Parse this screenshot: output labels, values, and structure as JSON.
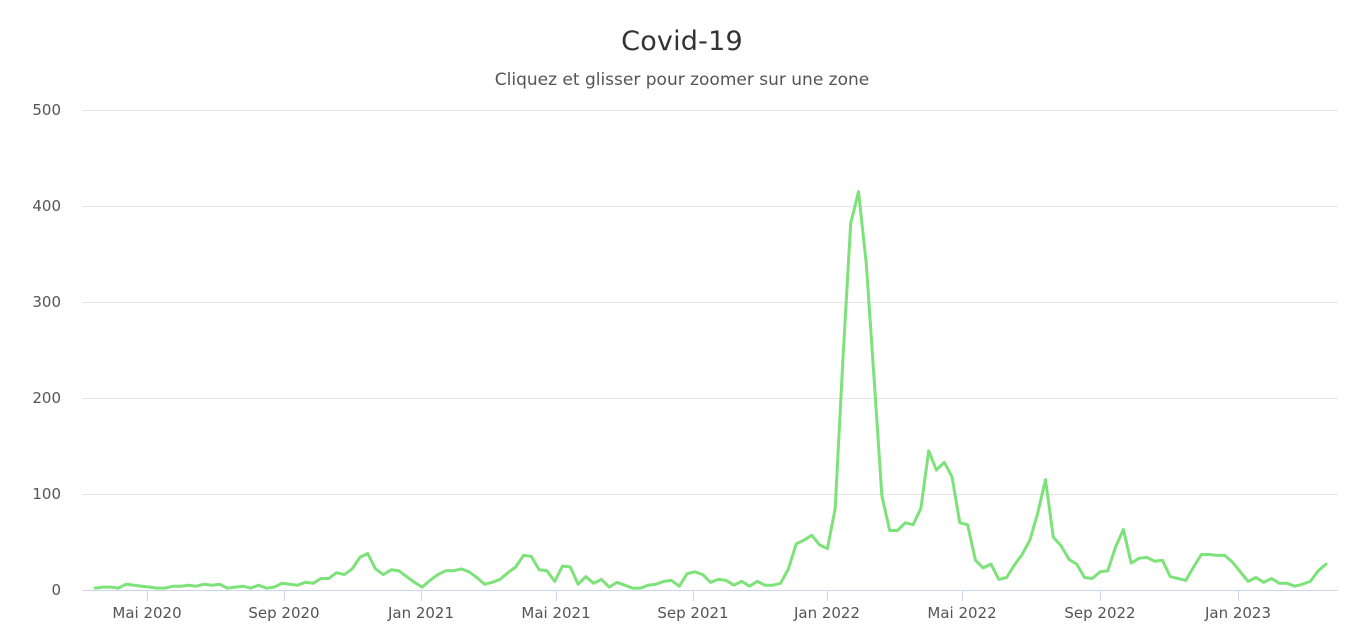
{
  "header": {
    "title": "Covid-19",
    "subtitle": "Cliquez et glisser pour zoomer sur une zone"
  },
  "colors": {
    "series": "#7ee27a",
    "grid": "#e6e6e6",
    "axis": "#ccd6eb",
    "text": "#555555",
    "title": "#333333"
  },
  "chart_data": {
    "type": "line",
    "title": "Covid-19",
    "subtitle": "Cliquez et glisser pour zoomer sur une zone",
    "xlabel": "",
    "ylabel": "",
    "ylim": [
      0,
      500
    ],
    "yticks": [
      0,
      100,
      200,
      300,
      400,
      500
    ],
    "xticks": [
      "Mai 2020",
      "Sep 2020",
      "Jan 2021",
      "Mai 2021",
      "Sep 2021",
      "Jan 2022",
      "Mai 2022",
      "Sep 2022",
      "Jan 2023"
    ],
    "grid": true,
    "legend": "none",
    "x_unit": "week",
    "x_start": "Mar 2020",
    "x_end": "Mar 2023",
    "series": [
      {
        "name": "Covid-19",
        "values": [
          2,
          3,
          3,
          2,
          6,
          5,
          4,
          3,
          2,
          2,
          4,
          4,
          5,
          4,
          6,
          5,
          6,
          2,
          3,
          4,
          2,
          5,
          2,
          3,
          7,
          6,
          5,
          8,
          7,
          12,
          12,
          18,
          16,
          22,
          34,
          38,
          22,
          16,
          21,
          20,
          14,
          8,
          3,
          10,
          16,
          20,
          20,
          22,
          19,
          13,
          6,
          8,
          11,
          18,
          24,
          36,
          35,
          21,
          20,
          9,
          25,
          24,
          6,
          14,
          7,
          11,
          3,
          8,
          5,
          2,
          2,
          5,
          6,
          9,
          10,
          4,
          17,
          19,
          16,
          8,
          11,
          10,
          5,
          9,
          4,
          9,
          5,
          5,
          7,
          22,
          48,
          52,
          57,
          47,
          43,
          85,
          240,
          382,
          415,
          340,
          220,
          98,
          62,
          62,
          70,
          68,
          85,
          145,
          125,
          133,
          118,
          70,
          68,
          31,
          23,
          27,
          11,
          13,
          26,
          37,
          52,
          80,
          115,
          55,
          46,
          32,
          27,
          13,
          12,
          19,
          20,
          45,
          63,
          28,
          33,
          34,
          30,
          31,
          14,
          12,
          10,
          24,
          37,
          37,
          36,
          36,
          29,
          19,
          9,
          13,
          8,
          12,
          7,
          7,
          4,
          6,
          9,
          20,
          27
        ]
      }
    ]
  }
}
